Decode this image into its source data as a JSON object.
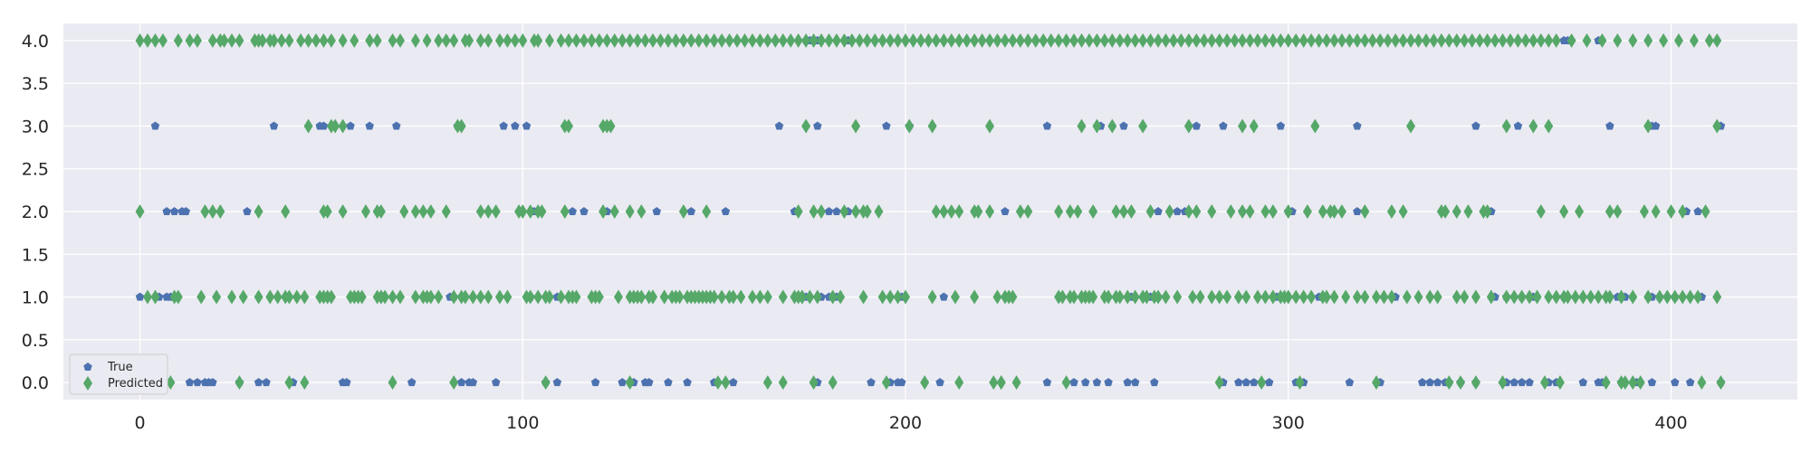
{
  "chart_data": {
    "type": "scatter",
    "title": "",
    "xlabel": "",
    "ylabel": "",
    "xlim": [
      -20,
      433
    ],
    "ylim": [
      -0.2,
      4.2
    ],
    "x_ticks": [
      0,
      100,
      200,
      300,
      400
    ],
    "y_ticks": [
      0.0,
      0.5,
      1.0,
      1.5,
      2.0,
      2.5,
      3.0,
      3.5,
      4.0
    ],
    "x_tick_labels": [
      "0",
      "100",
      "200",
      "300",
      "400"
    ],
    "y_tick_labels": [
      "0.0",
      "0.5",
      "1.0",
      "1.5",
      "2.0",
      "2.5",
      "3.0",
      "3.5",
      "4.0"
    ],
    "grid": true,
    "legend_position": "lower-left",
    "legend_entries": [
      "True",
      "Predicted"
    ],
    "colors": {
      "background": "#eaeaf2",
      "grid": "#ffffff",
      "true": "#4c72b0",
      "predicted": "#55a868"
    },
    "series": [
      {
        "name": "True",
        "marker": "pentagon",
        "points_by_value": {
          "0": [
            13,
            15,
            17,
            18,
            19,
            26,
            31,
            33,
            40,
            53,
            54,
            71,
            84,
            86,
            87,
            93,
            106,
            109,
            119,
            126,
            129,
            132,
            133,
            138,
            143,
            150,
            155,
            177,
            191,
            196,
            198,
            199,
            209,
            237,
            244,
            247,
            250,
            253,
            258,
            260,
            265,
            283,
            287,
            289,
            291,
            293,
            295,
            302,
            304,
            316,
            324,
            335,
            337,
            339,
            341,
            342,
            345,
            349,
            357,
            359,
            361,
            363,
            368,
            370,
            377,
            381,
            382,
            387,
            391,
            395,
            401,
            405,
            413
          ],
          "1": [
            0,
            5,
            7,
            8,
            81,
            82,
            102,
            109,
            145,
            174,
            178,
            180,
            182,
            199,
            210,
            259,
            264,
            266,
            297,
            308,
            328,
            354,
            357,
            361,
            364,
            372,
            386,
            388,
            395,
            397,
            401,
            408
          ],
          "2": [
            7,
            9,
            11,
            12,
            28,
            103,
            113,
            116,
            122,
            135,
            144,
            153,
            171,
            180,
            182,
            185,
            187,
            226,
            266,
            271,
            273,
            288,
            300,
            301,
            318,
            353,
            404,
            407
          ],
          "3": [
            4,
            35,
            47,
            48,
            55,
            60,
            67,
            83,
            95,
            98,
            101,
            167,
            177,
            195,
            201,
            237,
            251,
            257,
            276,
            283,
            298,
            318,
            349,
            360,
            384,
            395,
            396,
            413
          ],
          "4": [
            174,
            175,
            176,
            177,
            185,
            372,
            373,
            381
          ]
        }
      },
      {
        "name": "Predicted",
        "marker": "diamond",
        "points_by_value": {
          "0": [
            8,
            26,
            39,
            43,
            66,
            82,
            106,
            128,
            151,
            153,
            164,
            168,
            176,
            181,
            195,
            205,
            214,
            223,
            225,
            225,
            229,
            242,
            282,
            293,
            303,
            323,
            342,
            345,
            349,
            356,
            367,
            371,
            383,
            387,
            388,
            390,
            392,
            408,
            413
          ],
          "1": [
            2,
            4,
            9,
            10,
            16,
            20,
            24,
            27,
            31,
            34,
            36,
            38,
            39,
            41,
            43,
            47,
            48,
            49,
            50,
            55,
            56,
            57,
            58,
            62,
            63,
            63,
            64,
            66,
            68,
            72,
            74,
            75,
            76,
            78,
            82,
            84,
            85,
            87,
            89,
            91,
            94,
            96,
            101,
            102,
            104,
            106,
            107,
            110,
            112,
            113,
            114,
            118,
            119,
            120,
            125,
            128,
            129,
            130,
            131,
            133,
            134,
            134,
            137,
            137,
            139,
            140,
            141,
            143,
            144,
            145,
            146,
            147,
            148,
            149,
            150,
            152,
            154,
            155,
            157,
            160,
            162,
            164,
            168,
            171,
            172,
            173,
            173,
            175,
            177,
            181,
            183,
            189,
            194,
            196,
            198,
            200,
            207,
            213,
            218,
            224,
            226,
            227,
            228,
            240,
            241,
            243,
            244,
            246,
            247,
            248,
            249,
            252,
            253,
            255,
            256,
            258,
            260,
            262,
            263,
            265,
            266,
            268,
            271,
            275,
            277,
            280,
            282,
            284,
            287,
            289,
            292,
            294,
            296,
            298,
            299,
            300,
            302,
            304,
            306,
            309,
            310,
            312,
            315,
            318,
            320,
            323,
            325,
            327,
            331,
            334,
            337,
            339,
            344,
            346,
            349,
            353,
            357,
            359,
            361,
            363,
            365,
            368,
            370,
            372,
            373,
            375,
            377,
            379,
            381,
            383,
            384,
            387,
            390,
            394,
            397,
            399,
            401,
            403,
            405,
            407,
            412
          ],
          "2": [
            0,
            17,
            19,
            21,
            31,
            38,
            48,
            49,
            53,
            59,
            62,
            63,
            69,
            72,
            74,
            76,
            80,
            89,
            91,
            93,
            99,
            100,
            102,
            104,
            105,
            111,
            121,
            124,
            128,
            131,
            142,
            148,
            172,
            176,
            178,
            184,
            187,
            189,
            190,
            193,
            208,
            210,
            212,
            214,
            218,
            219,
            222,
            230,
            232,
            240,
            243,
            245,
            249,
            255,
            257,
            259,
            264,
            269,
            274,
            276,
            280,
            285,
            288,
            290,
            294,
            296,
            300,
            305,
            309,
            311,
            312,
            314,
            320,
            327,
            330,
            340,
            341,
            344,
            347,
            351,
            352,
            366,
            372,
            376,
            384,
            386,
            393,
            396,
            400,
            403,
            409
          ],
          "3": [
            44,
            50,
            51,
            53,
            83,
            84,
            111,
            112,
            121,
            122,
            123,
            174,
            187,
            201,
            207,
            222,
            246,
            250,
            254,
            262,
            274,
            288,
            291,
            307,
            332,
            357,
            364,
            368,
            394,
            412
          ],
          "4": [
            0,
            2,
            4,
            6,
            10,
            13,
            15,
            19,
            21,
            22,
            24,
            26,
            30,
            31,
            32,
            34,
            35,
            37,
            39,
            42,
            44,
            46,
            48,
            50,
            53,
            56,
            60,
            62,
            66,
            68,
            72,
            75,
            78,
            80,
            82,
            85,
            86,
            89,
            91,
            94,
            96,
            98,
            100,
            103,
            104,
            107,
            110,
            112,
            114,
            116,
            118,
            120,
            122,
            124,
            126,
            128,
            130,
            132,
            134,
            136,
            138,
            140,
            142,
            144,
            146,
            148,
            150,
            152,
            154,
            156,
            158,
            160,
            162,
            164,
            166,
            168,
            170,
            172,
            174,
            176,
            178,
            180,
            182,
            184,
            186,
            188,
            190,
            192,
            194,
            196,
            198,
            200,
            202,
            204,
            206,
            208,
            210,
            212,
            214,
            216,
            218,
            220,
            222,
            224,
            226,
            228,
            230,
            232,
            234,
            236,
            238,
            240,
            242,
            244,
            246,
            248,
            250,
            252,
            254,
            256,
            258,
            260,
            262,
            264,
            266,
            268,
            270,
            272,
            274,
            276,
            278,
            280,
            282,
            284,
            286,
            288,
            290,
            292,
            294,
            296,
            298,
            300,
            302,
            304,
            306,
            308,
            310,
            312,
            314,
            316,
            318,
            320,
            322,
            324,
            326,
            328,
            330,
            332,
            334,
            336,
            338,
            340,
            342,
            344,
            346,
            348,
            350,
            352,
            354,
            356,
            358,
            360,
            362,
            364,
            366,
            368,
            370,
            374,
            378,
            382,
            386,
            390,
            394,
            398,
            402,
            406,
            410,
            412
          ]
        }
      }
    ]
  }
}
